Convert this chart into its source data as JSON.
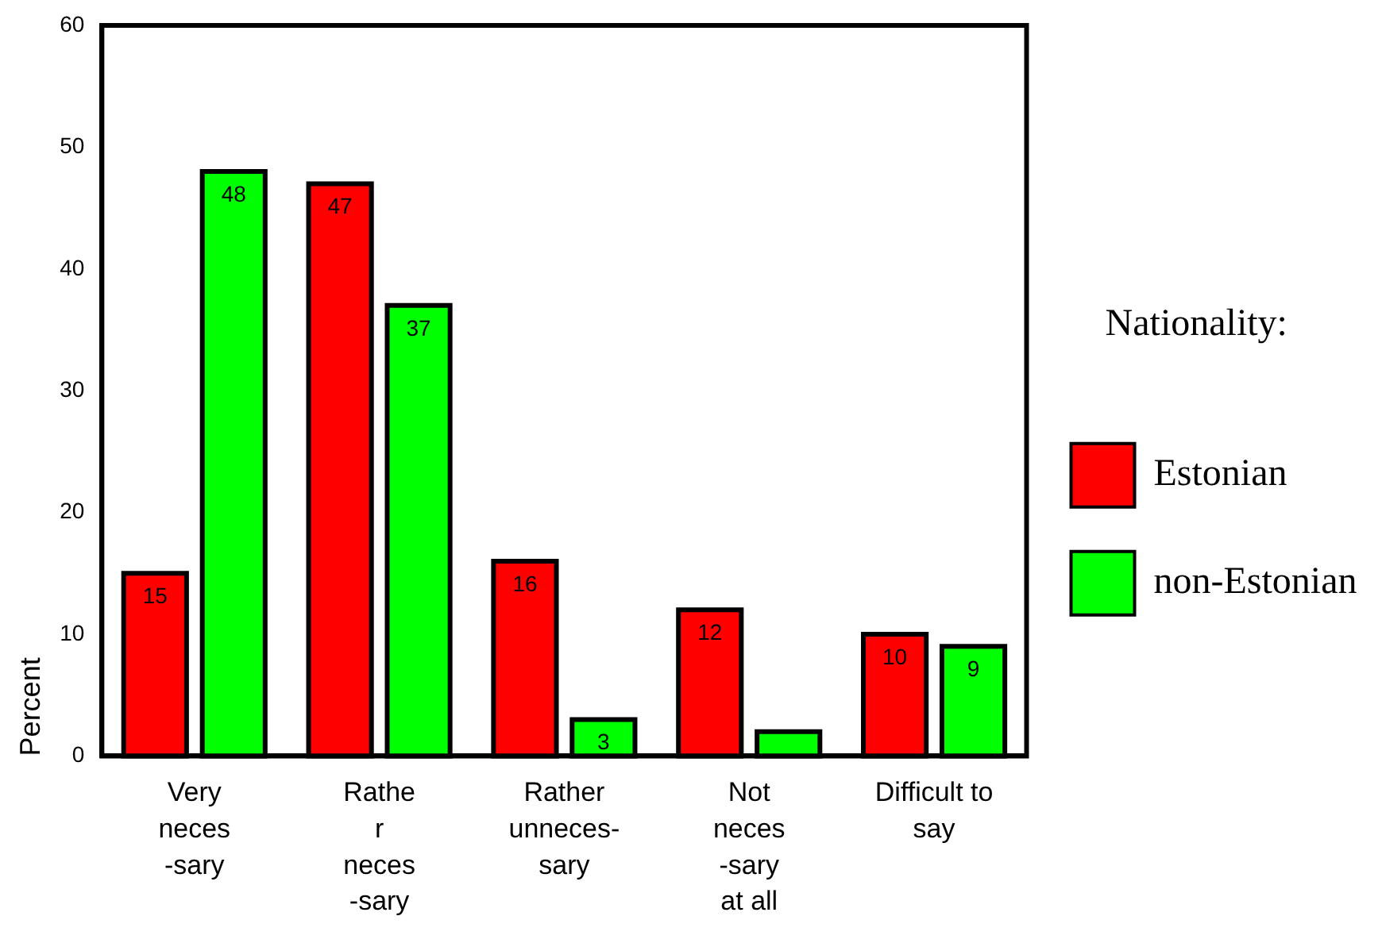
{
  "chart_data": {
    "type": "bar",
    "ylabel": "Percent",
    "legend_title": "Nationality:",
    "legend": "right",
    "categories": [
      "Very\nneces\n-sary",
      "Rathe\nr\nneces\n-sary",
      "Rather\nunneces-\nsary",
      "Not\nneces\n-sary\nat all",
      "Difficult to\nsay"
    ],
    "ylim": [
      0,
      60
    ],
    "yticks": [
      0,
      10,
      20,
      30,
      40,
      50,
      60
    ],
    "series": [
      {
        "name": "Estonian",
        "color": "#ff0000",
        "values": [
          15,
          47,
          16,
          12,
          10
        ],
        "value_labels": [
          "15",
          "47",
          "16",
          "12",
          "10"
        ]
      },
      {
        "name": "non-Estonian",
        "color": "#00ff00",
        "values": [
          48,
          37,
          3,
          2,
          9
        ],
        "value_labels": [
          "48",
          "37",
          "3",
          null,
          "9"
        ]
      }
    ]
  }
}
